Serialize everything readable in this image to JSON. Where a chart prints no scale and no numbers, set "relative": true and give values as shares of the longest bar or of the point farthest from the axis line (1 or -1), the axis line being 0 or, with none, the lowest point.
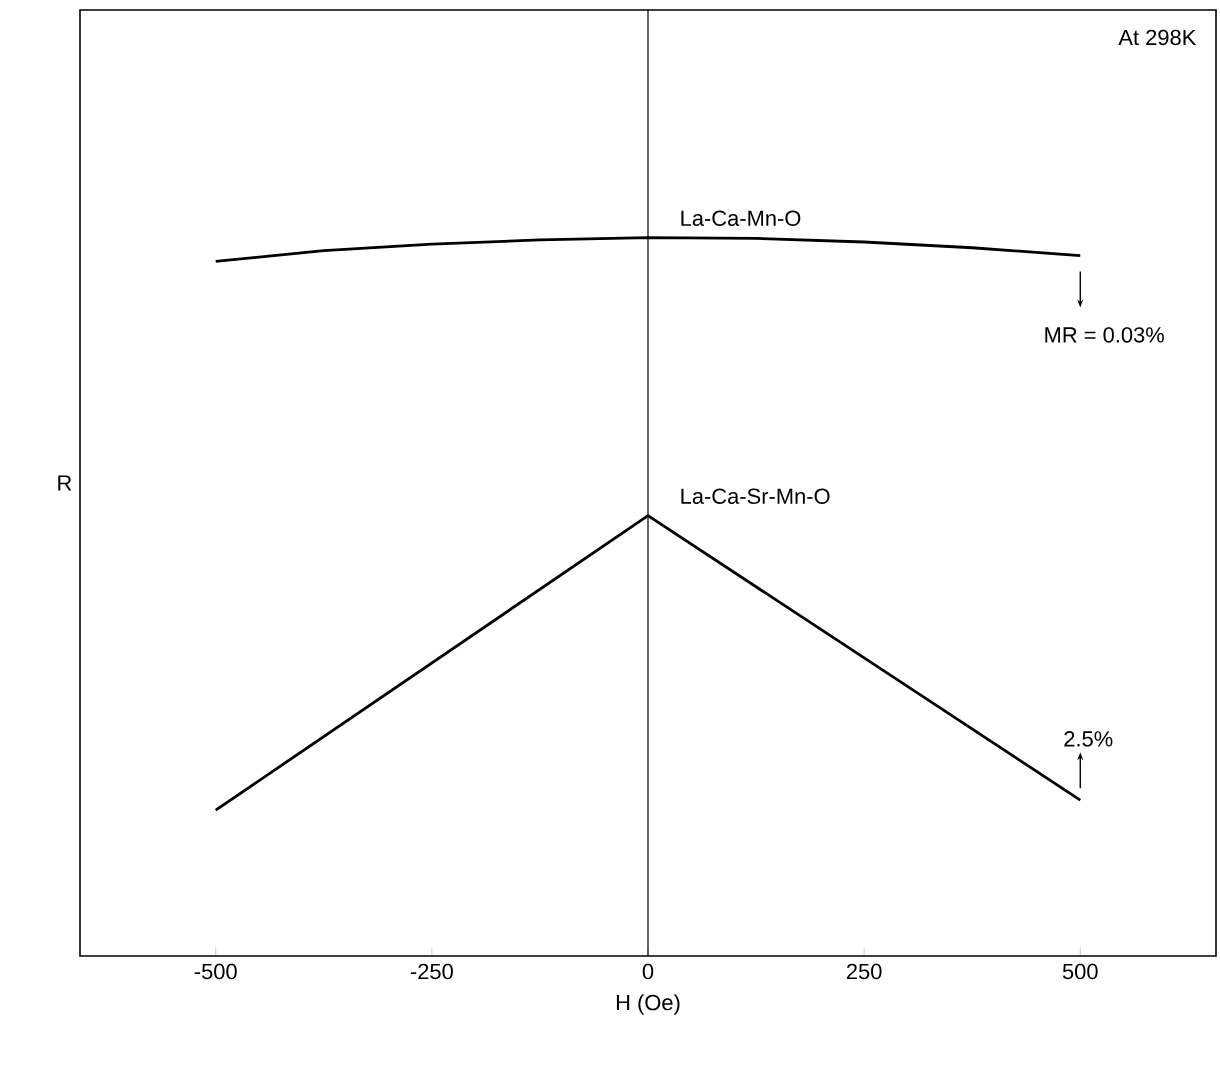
{
  "chart_data": {
    "type": "line",
    "relative": true,
    "xlabel": "H (Oe)",
    "ylabel": "R",
    "xlim": [
      -657,
      657
    ],
    "xticks": [
      -500,
      -250,
      0,
      250,
      500
    ],
    "series": [
      {
        "name": "La-Ca-Mn-O",
        "color": "#000000",
        "x": [
          -500,
          -375,
          -250,
          -125,
          0,
          125,
          250,
          375,
          500
        ],
        "values": [
          0.967,
          0.982,
          0.991,
          0.997,
          1.0,
          0.999,
          0.994,
          0.986,
          0.975
        ]
      },
      {
        "name": "La-Ca-Sr-Mn-O",
        "color": "#000000",
        "x": [
          -500,
          0,
          500
        ],
        "values": [
          0.203,
          0.613,
          0.217
        ]
      }
    ],
    "ref_lines": [
      {
        "axis": "x",
        "value": 0
      }
    ],
    "annotations": [
      "At 298K",
      {
        "text": "MR = 0.03%",
        "x": 500,
        "y": 0.975
      },
      {
        "text": "2.5%",
        "x": 500,
        "y": 0.217
      }
    ],
    "legend": false,
    "grid": false,
    "marker": "none",
    "line_style": "solid"
  }
}
